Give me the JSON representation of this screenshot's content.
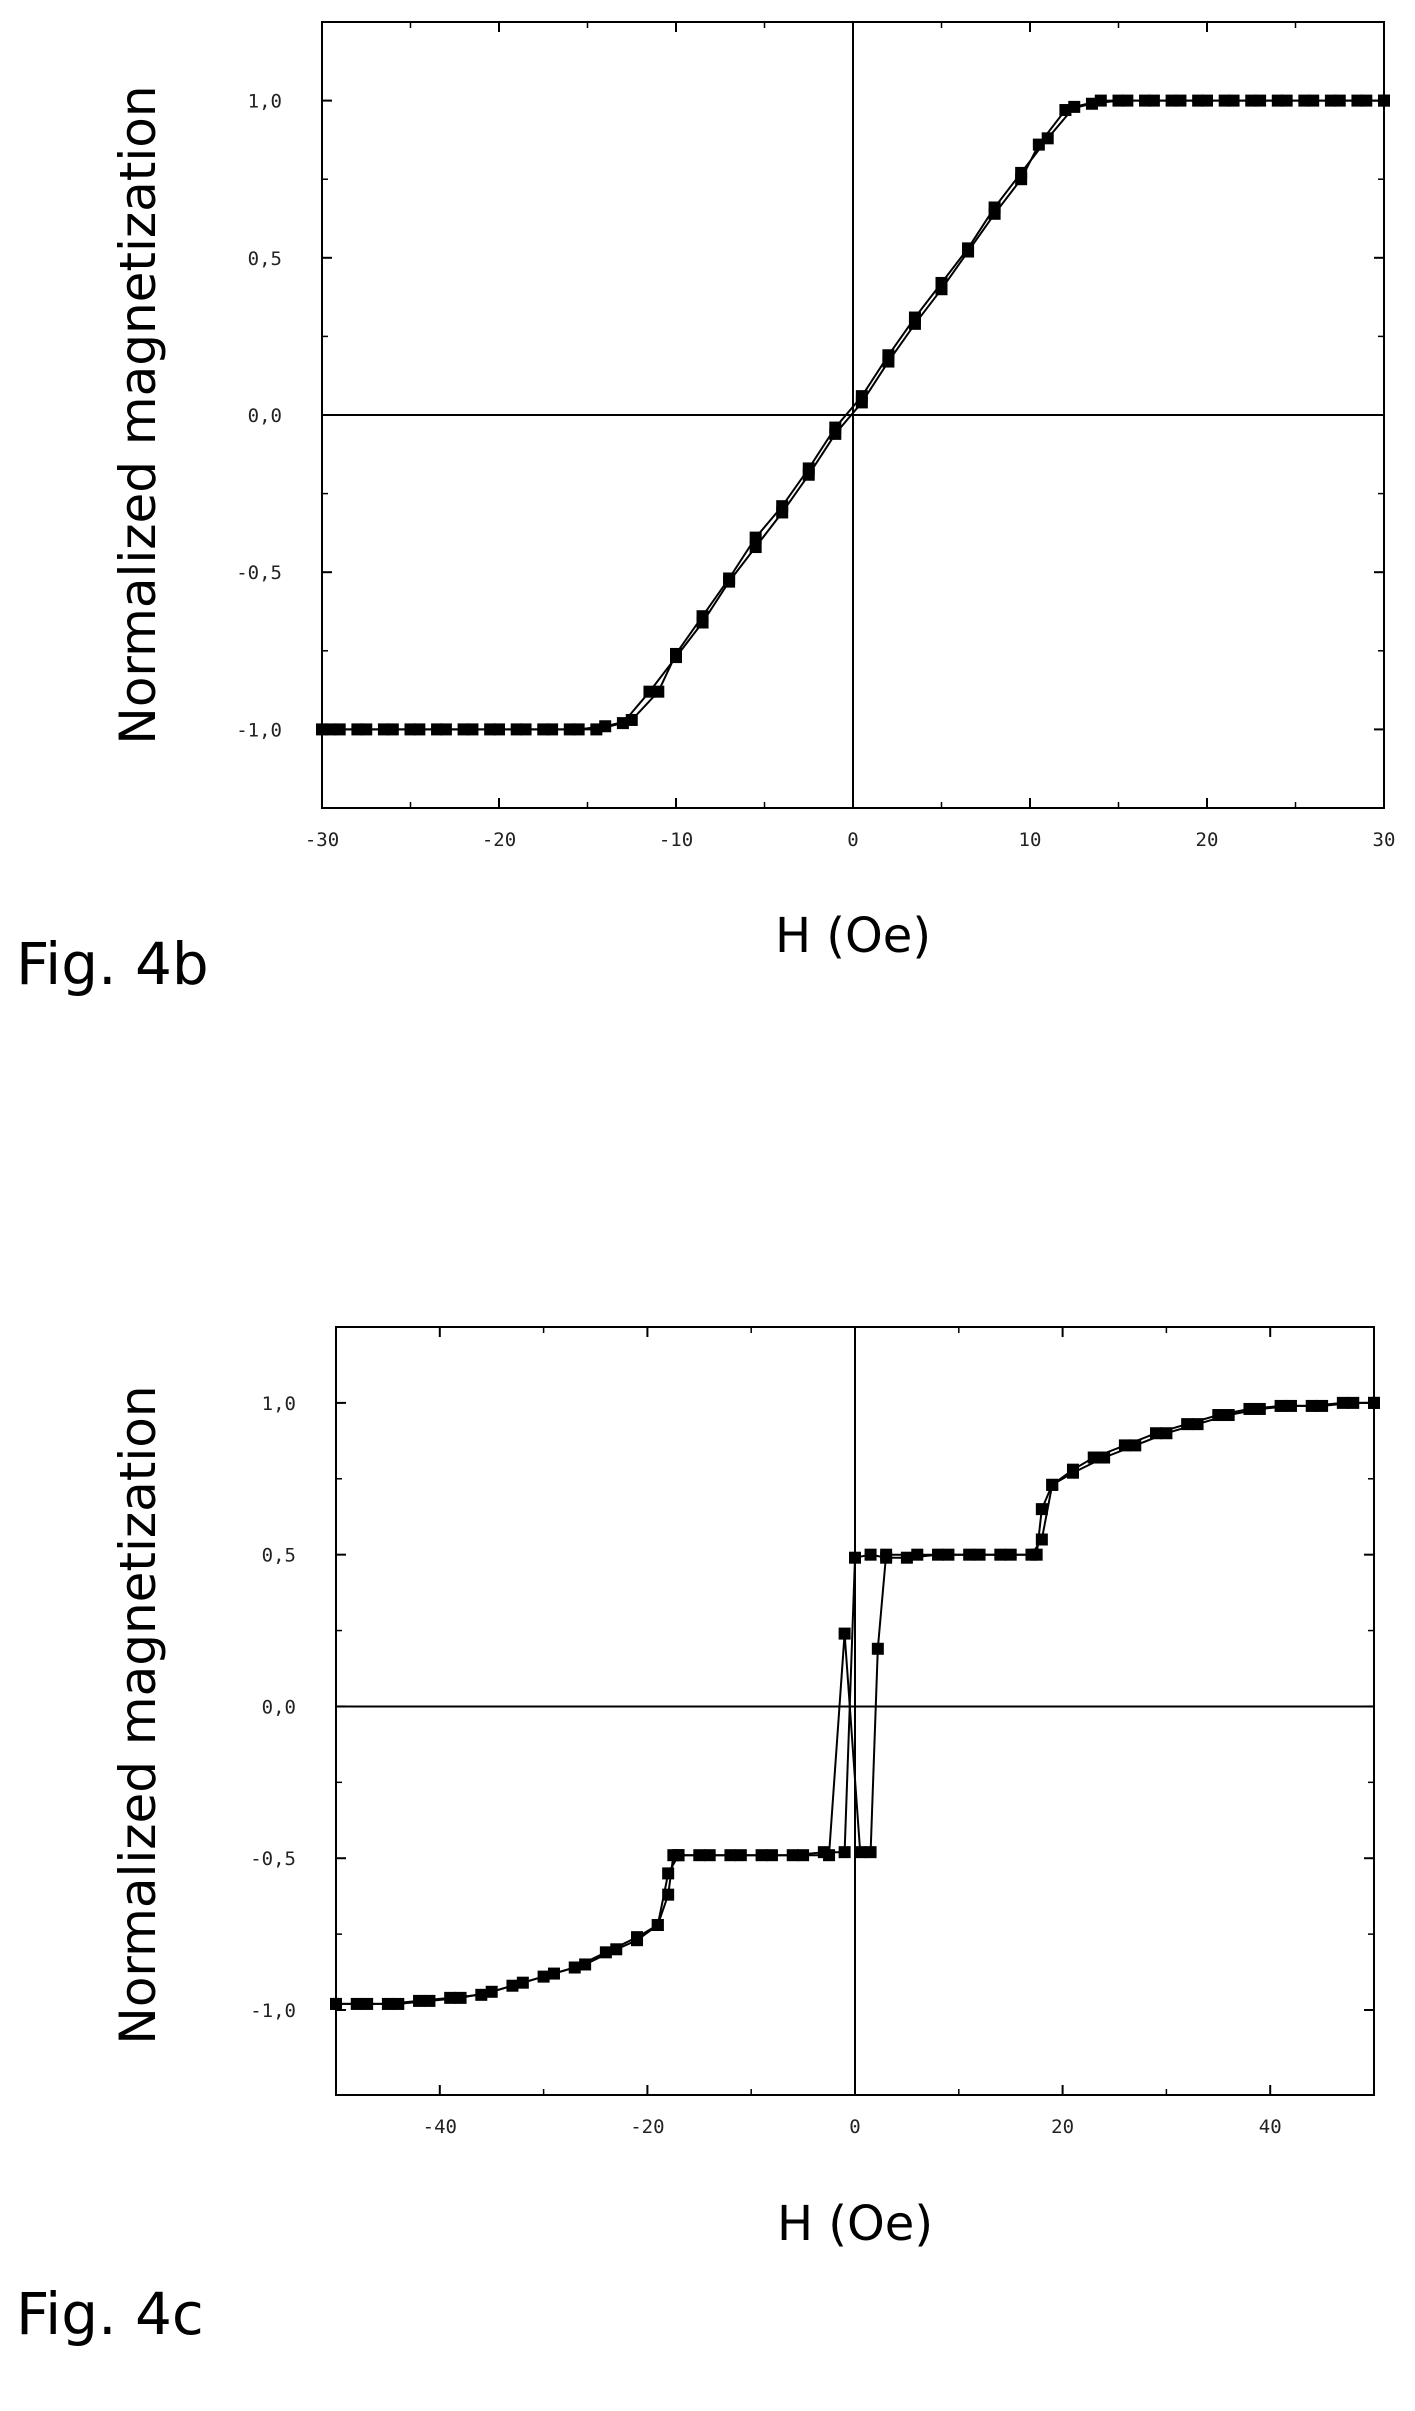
{
  "figures": [
    {
      "label": "Fig. 4b"
    },
    {
      "label": "Fig. 4c"
    }
  ],
  "chart_data": [
    {
      "type": "scatter",
      "title": "",
      "xlabel": "H (Oe)",
      "ylabel": "Normalized magnetization",
      "xlim": [
        -30,
        30
      ],
      "ylim": [
        -1.25,
        1.25
      ],
      "xticks": [
        -30,
        -20,
        -10,
        0,
        10,
        20,
        30
      ],
      "xtick_labels": [
        "-30",
        "-20",
        "-10",
        "0",
        "10",
        "20",
        "30"
      ],
      "yticks": [
        -1.0,
        -0.5,
        0.0,
        0.5,
        1.0
      ],
      "ytick_labels": [
        "-1,0",
        "-0,5",
        "0,0",
        "0,5",
        "1,0"
      ],
      "grid": false,
      "legend": "none",
      "zero_lines": true,
      "series": [
        {
          "x": [
            -30,
            -29,
            -27.5,
            -26,
            -24.5,
            -23,
            -21.5,
            -20,
            -18.5,
            -17,
            -15.5,
            -14,
            -12.5,
            -11,
            -10,
            -8.5,
            -7,
            -5.5,
            -4,
            -2.5,
            -1,
            0.5,
            2,
            3.5,
            5,
            6.5,
            8,
            9.5,
            11,
            12.5,
            14,
            15.5,
            17,
            18.5,
            20,
            21.5,
            23,
            24.5,
            26,
            27.5,
            29,
            30
          ],
          "y": [
            -1.0,
            -1.0,
            -1.0,
            -1.0,
            -1.0,
            -1.0,
            -1.0,
            -1.0,
            -1.0,
            -1.0,
            -1.0,
            -0.99,
            -0.97,
            -0.88,
            -0.76,
            -0.64,
            -0.52,
            -0.39,
            -0.29,
            -0.17,
            -0.04,
            0.06,
            0.19,
            0.31,
            0.42,
            0.53,
            0.66,
            0.77,
            0.88,
            0.98,
            1.0,
            1.0,
            1.0,
            1.0,
            1.0,
            1.0,
            1.0,
            1.0,
            1.0,
            1.0,
            1.0,
            1.0
          ]
        },
        {
          "x": [
            30,
            28.5,
            27,
            25.5,
            24,
            22.5,
            21,
            19.5,
            18,
            16.5,
            15,
            13.5,
            12,
            10.5,
            9.5,
            8,
            6.5,
            5,
            3.5,
            2,
            0.5,
            -1,
            -2.5,
            -4,
            -5.5,
            -7,
            -8.5,
            -10,
            -11.5,
            -13,
            -14.5,
            -16,
            -17.5,
            -19,
            -20.5,
            -22,
            -23.5,
            -25,
            -26.5,
            -28,
            -29.5
          ],
          "y": [
            1.0,
            1.0,
            1.0,
            1.0,
            1.0,
            1.0,
            1.0,
            1.0,
            1.0,
            1.0,
            1.0,
            0.99,
            0.97,
            0.86,
            0.75,
            0.64,
            0.52,
            0.4,
            0.29,
            0.17,
            0.04,
            -0.06,
            -0.19,
            -0.31,
            -0.42,
            -0.53,
            -0.66,
            -0.77,
            -0.88,
            -0.98,
            -1.0,
            -1.0,
            -1.0,
            -1.0,
            -1.0,
            -1.0,
            -1.0,
            -1.0,
            -1.0,
            -1.0,
            -1.0
          ]
        }
      ]
    },
    {
      "type": "scatter",
      "title": "",
      "xlabel": "H (Oe)",
      "ylabel": "Normalized magnetization",
      "xlim": [
        -50,
        50
      ],
      "ylim": [
        -1.28,
        1.25
      ],
      "xticks": [
        -40,
        -20,
        0,
        20,
        40
      ],
      "xtick_labels": [
        "-40",
        "-20",
        "0",
        "20",
        "40"
      ],
      "yticks": [
        -1.0,
        -0.5,
        0.0,
        0.5,
        1.0
      ],
      "ytick_labels": [
        "-1,0",
        "-0,5",
        "0,0",
        "0,5",
        "1,0"
      ],
      "grid": false,
      "legend": "none",
      "zero_lines": true,
      "series": [
        {
          "x": [
            -50,
            -47,
            -44,
            -41,
            -38,
            -35,
            -32,
            -29,
            -26,
            -23,
            -21,
            -19,
            -18,
            -17,
            -15,
            -12,
            -9,
            -6,
            -3,
            -1,
            0,
            1.5,
            3,
            5,
            8,
            11,
            14,
            17.5,
            18,
            19,
            21,
            24,
            27,
            30,
            33,
            36,
            39,
            42,
            45,
            48,
            50
          ],
          "y": [
            -0.98,
            -0.98,
            -0.98,
            -0.97,
            -0.96,
            -0.94,
            -0.91,
            -0.88,
            -0.85,
            -0.8,
            -0.77,
            -0.72,
            -0.55,
            -0.49,
            -0.49,
            -0.49,
            -0.49,
            -0.49,
            -0.48,
            -0.48,
            0.49,
            0.5,
            0.49,
            0.49,
            0.5,
            0.5,
            0.5,
            0.5,
            0.65,
            0.73,
            0.77,
            0.82,
            0.86,
            0.9,
            0.93,
            0.96,
            0.98,
            0.99,
            0.99,
            1.0,
            1.0
          ]
        },
        {
          "x": [
            50,
            47,
            44,
            41,
            38,
            35,
            32,
            29,
            26,
            23,
            21,
            19,
            18,
            17,
            15,
            12,
            9,
            6,
            3,
            2.2,
            1.5,
            0.5,
            -1,
            -2.5,
            -5,
            -8,
            -11,
            -14,
            -17,
            -17.5,
            -18,
            -19,
            -21,
            -24,
            -27,
            -30,
            -33,
            -36,
            -39,
            -42,
            -45,
            -48,
            -50
          ],
          "y": [
            1.0,
            1.0,
            0.99,
            0.99,
            0.98,
            0.96,
            0.93,
            0.9,
            0.86,
            0.82,
            0.78,
            0.73,
            0.55,
            0.5,
            0.5,
            0.5,
            0.5,
            0.5,
            0.5,
            0.19,
            -0.48,
            -0.48,
            0.24,
            -0.49,
            -0.49,
            -0.49,
            -0.49,
            -0.49,
            -0.49,
            -0.49,
            -0.62,
            -0.72,
            -0.76,
            -0.81,
            -0.86,
            -0.89,
            -0.92,
            -0.95,
            -0.96,
            -0.97,
            -0.98,
            -0.98,
            -0.98
          ]
        }
      ]
    }
  ]
}
